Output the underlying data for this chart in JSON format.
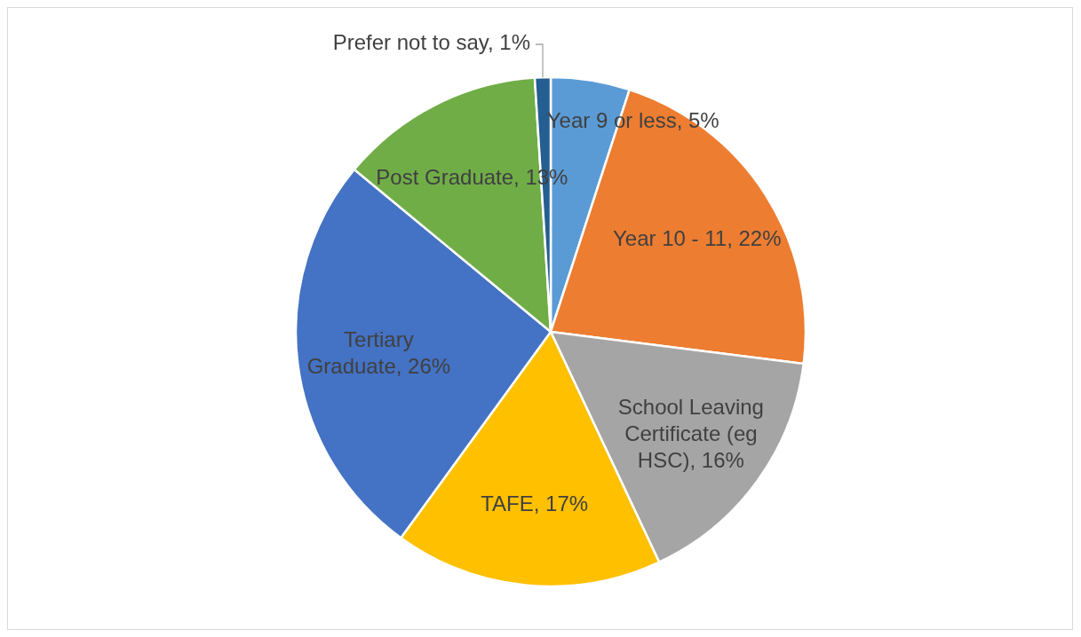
{
  "chart_data": {
    "type": "pie",
    "categories": [
      "Year 9 or less",
      "Year 10 - 11",
      "School Leaving Certificate (eg HSC)",
      "TAFE",
      "Tertiary Graduate",
      "Post Graduate",
      "Prefer not to say"
    ],
    "values": [
      5,
      22,
      16,
      17,
      26,
      13,
      1
    ],
    "value_labels": [
      "5%",
      "22%",
      "16%",
      "17%",
      "26%",
      "13%",
      "1%"
    ],
    "colors": [
      "#5b9bd5",
      "#ed7d31",
      "#a5a5a5",
      "#ffc000",
      "#4472c4",
      "#70ad47",
      "#255e91"
    ]
  }
}
